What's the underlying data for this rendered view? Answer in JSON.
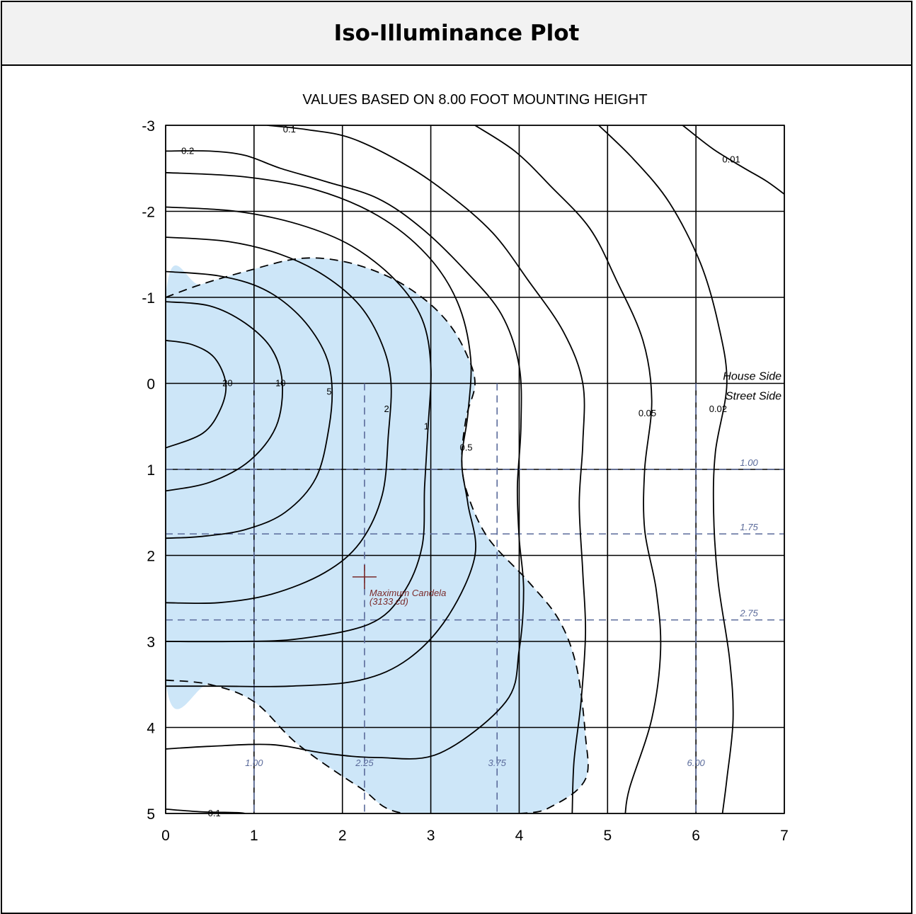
{
  "header": {
    "title": "Iso-Illuminance Plot"
  },
  "chart_data": {
    "type": "contour",
    "subtitle": "VALUES BASED ON 8.00 FOOT MOUNTING HEIGHT",
    "xlim": [
      0,
      7
    ],
    "ylim": [
      -3,
      5
    ],
    "y_inverted": true,
    "x_ticks": [
      "0",
      "1",
      "2",
      "3",
      "4",
      "5",
      "6",
      "7"
    ],
    "y_ticks": [
      "-3",
      "-2",
      "-1",
      "0",
      "1",
      "2",
      "3",
      "4",
      "5"
    ],
    "grid": true,
    "contours": [
      {
        "label": "20",
        "label_at": [
          0.7,
          0
        ],
        "points": [
          [
            0,
            -0.5
          ],
          [
            0.3,
            -0.45
          ],
          [
            0.55,
            -0.3
          ],
          [
            0.68,
            0
          ],
          [
            0.62,
            0.3
          ],
          [
            0.42,
            0.58
          ],
          [
            0,
            0.75
          ]
        ]
      },
      {
        "label": "10",
        "label_at": [
          1.3,
          0
        ],
        "points": [
          [
            0,
            -0.95
          ],
          [
            0.5,
            -0.9
          ],
          [
            0.9,
            -0.7
          ],
          [
            1.2,
            -0.4
          ],
          [
            1.32,
            0
          ],
          [
            1.25,
            0.5
          ],
          [
            0.95,
            0.9
          ],
          [
            0.5,
            1.15
          ],
          [
            0,
            1.25
          ]
        ]
      },
      {
        "label": "5",
        "label_at": [
          1.85,
          0.1
        ],
        "points": [
          [
            0,
            -1.3
          ],
          [
            0.6,
            -1.25
          ],
          [
            1.1,
            -1.1
          ],
          [
            1.5,
            -0.8
          ],
          [
            1.78,
            -0.4
          ],
          [
            1.88,
            0
          ],
          [
            1.85,
            0.5
          ],
          [
            1.7,
            1.1
          ],
          [
            1.35,
            1.5
          ],
          [
            0.9,
            1.7
          ],
          [
            0.4,
            1.78
          ],
          [
            0,
            1.8
          ]
        ]
      },
      {
        "label": "2",
        "label_at": [
          2.5,
          0.3
        ],
        "points": [
          [
            0,
            -1.7
          ],
          [
            0.7,
            -1.65
          ],
          [
            1.3,
            -1.5
          ],
          [
            1.8,
            -1.25
          ],
          [
            2.2,
            -0.9
          ],
          [
            2.45,
            -0.45
          ],
          [
            2.55,
            0
          ],
          [
            2.52,
            0.6
          ],
          [
            2.45,
            1.3
          ],
          [
            2.2,
            1.85
          ],
          [
            1.8,
            2.2
          ],
          [
            1.2,
            2.45
          ],
          [
            0.6,
            2.55
          ],
          [
            0,
            2.55
          ]
        ]
      },
      {
        "label": "1",
        "label_at": [
          2.95,
          0.5
        ],
        "points": [
          [
            0,
            -2.05
          ],
          [
            0.8,
            -2.0
          ],
          [
            1.5,
            -1.85
          ],
          [
            2.1,
            -1.6
          ],
          [
            2.6,
            -1.2
          ],
          [
            2.9,
            -0.75
          ],
          [
            3.0,
            -0.2
          ],
          [
            2.97,
            0.5
          ],
          [
            2.93,
            1.2
          ],
          [
            2.9,
            1.9
          ],
          [
            2.68,
            2.45
          ],
          [
            2.3,
            2.8
          ],
          [
            1.5,
            2.97
          ],
          [
            0.8,
            3.0
          ],
          [
            0,
            3.0
          ]
        ]
      },
      {
        "label": "0.5",
        "label_at": [
          3.4,
          0.75
        ],
        "points": [
          [
            0,
            -2.45
          ],
          [
            0.9,
            -2.4
          ],
          [
            1.7,
            -2.25
          ],
          [
            2.4,
            -1.95
          ],
          [
            2.95,
            -1.5
          ],
          [
            3.3,
            -0.95
          ],
          [
            3.45,
            -0.3
          ],
          [
            3.42,
            0.35
          ],
          [
            3.35,
            0.9
          ],
          [
            3.42,
            1.4
          ],
          [
            3.5,
            2.0
          ],
          [
            3.2,
            2.7
          ],
          [
            2.75,
            3.2
          ],
          [
            2.2,
            3.45
          ],
          [
            1.4,
            3.52
          ],
          [
            0.6,
            3.52
          ],
          [
            0,
            3.52
          ]
        ]
      },
      {
        "label": "0.2",
        "label_at": [
          0.25,
          -2.7
        ],
        "points": [
          [
            0,
            -2.7
          ],
          [
            0.5,
            -2.7
          ],
          [
            0.9,
            -2.65
          ],
          [
            1.3,
            -2.5
          ],
          [
            1.8,
            -2.35
          ],
          [
            2.4,
            -2.15
          ],
          [
            2.9,
            -1.8
          ],
          [
            3.4,
            -1.3
          ],
          [
            3.8,
            -0.8
          ],
          [
            4.0,
            -0.2
          ],
          [
            4.02,
            0.5
          ],
          [
            3.98,
            1.2
          ],
          [
            4.0,
            1.8
          ],
          [
            4.05,
            2.4
          ],
          [
            4.0,
            3.1
          ],
          [
            3.85,
            3.7
          ],
          [
            3.1,
            4.3
          ],
          [
            2.4,
            4.35
          ],
          [
            1.8,
            4.3
          ],
          [
            1.2,
            4.2
          ],
          [
            0.5,
            4.22
          ],
          [
            0,
            4.25
          ]
        ]
      },
      {
        "label": "0.1",
        "label_at": [
          1.4,
          -2.95
        ],
        "points": [
          [
            1.15,
            -3.0
          ],
          [
            1.6,
            -2.95
          ],
          [
            2.1,
            -2.85
          ],
          [
            2.7,
            -2.55
          ],
          [
            3.2,
            -2.2
          ],
          [
            3.7,
            -1.75
          ],
          [
            4.1,
            -1.2
          ],
          [
            4.5,
            -0.6
          ],
          [
            4.72,
            0
          ],
          [
            4.72,
            0.7
          ],
          [
            4.68,
            1.4
          ],
          [
            4.72,
            2.2
          ],
          [
            4.75,
            2.9
          ],
          [
            4.7,
            3.7
          ],
          [
            4.62,
            4.4
          ],
          [
            4.6,
            5.0
          ]
        ]
      },
      {
        "label": "0.1",
        "label_at": [
          0.55,
          5.0
        ],
        "points": [
          [
            0,
            4.95
          ],
          [
            0.4,
            4.98
          ],
          [
            0.8,
            4.99
          ],
          [
            0.9,
            5.0
          ]
        ]
      },
      {
        "label": "0.05",
        "label_at": [
          5.45,
          0.35
        ],
        "points": [
          [
            3.5,
            -3.0
          ],
          [
            3.95,
            -2.7
          ],
          [
            4.35,
            -2.3
          ],
          [
            4.8,
            -1.8
          ],
          [
            5.1,
            -1.2
          ],
          [
            5.4,
            -0.5
          ],
          [
            5.5,
            0.2
          ],
          [
            5.42,
            1.0
          ],
          [
            5.42,
            1.7
          ],
          [
            5.55,
            2.4
          ],
          [
            5.6,
            3.1
          ],
          [
            5.5,
            3.9
          ],
          [
            5.25,
            4.7
          ],
          [
            5.2,
            5.0
          ]
        ]
      },
      {
        "label": "0.02",
        "label_at": [
          6.25,
          0.3
        ],
        "points": [
          [
            4.9,
            -3.0
          ],
          [
            5.3,
            -2.6
          ],
          [
            5.7,
            -2.1
          ],
          [
            6.05,
            -1.4
          ],
          [
            6.25,
            -0.7
          ],
          [
            6.35,
            0
          ],
          [
            6.22,
            0.8
          ],
          [
            6.2,
            1.5
          ],
          [
            6.25,
            2.3
          ],
          [
            6.38,
            3.2
          ],
          [
            6.42,
            3.9
          ],
          [
            6.35,
            4.6
          ],
          [
            6.3,
            5.0
          ]
        ]
      },
      {
        "label": "0.01",
        "label_at": [
          6.4,
          -2.6
        ],
        "points": [
          [
            5.85,
            -3.0
          ],
          [
            6.2,
            -2.72
          ],
          [
            6.55,
            -2.5
          ],
          [
            6.8,
            -2.35
          ],
          [
            7.0,
            -2.2
          ]
        ]
      }
    ],
    "half_max_curve": [
      [
        0,
        -1.0
      ],
      [
        0.4,
        -1.15
      ],
      [
        0.9,
        -1.3
      ],
      [
        1.5,
        -1.45
      ],
      [
        2.0,
        -1.42
      ],
      [
        2.5,
        -1.25
      ],
      [
        2.9,
        -1.0
      ],
      [
        3.2,
        -0.7
      ],
      [
        3.4,
        -0.35
      ],
      [
        3.5,
        0
      ],
      [
        3.4,
        0.4
      ],
      [
        3.35,
        0.9
      ],
      [
        3.42,
        1.3
      ],
      [
        3.65,
        1.8
      ],
      [
        4.1,
        2.3
      ],
      [
        4.45,
        2.75
      ],
      [
        4.65,
        3.3
      ],
      [
        4.75,
        4.1
      ],
      [
        4.75,
        4.6
      ],
      [
        4.4,
        4.9
      ],
      [
        4.0,
        5.0
      ],
      [
        2.7,
        5.0
      ],
      [
        2.2,
        4.7
      ],
      [
        1.5,
        4.2
      ],
      [
        1.0,
        3.7
      ],
      [
        0.5,
        3.5
      ],
      [
        0,
        3.45
      ]
    ],
    "house_side_label": "House Side",
    "street_side_label": "Street Side",
    "reference_lines": {
      "vertical": [
        {
          "x": 1.0,
          "label": "1.00"
        },
        {
          "x": 2.25,
          "label": "2.25"
        },
        {
          "x": 3.75,
          "label": "3.75"
        },
        {
          "x": 6.0,
          "label": "6.00"
        }
      ],
      "horizontal": [
        {
          "y": 1.0,
          "label": "1.00"
        },
        {
          "y": 1.75,
          "label": "1.75"
        },
        {
          "y": 2.75,
          "label": "2.75"
        }
      ]
    },
    "max_candela": {
      "x": 2.25,
      "y": 2.25,
      "label": "Maximum Candela",
      "value_label": "(3133 cd)"
    },
    "colors": {
      "fill": "#cde6f8",
      "ref_line": "#5a6a9a",
      "marker": "#7a2a2a"
    }
  }
}
